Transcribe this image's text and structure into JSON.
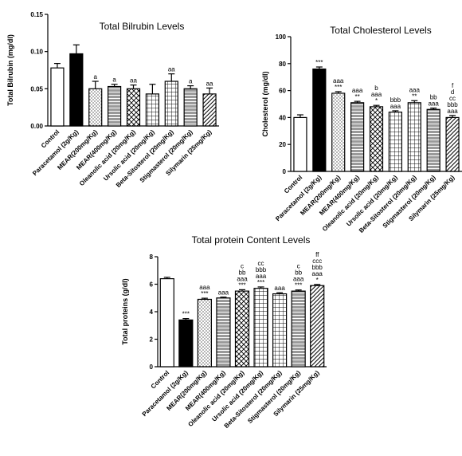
{
  "categories": [
    "Control",
    "Paracetamol (2g/Kg)",
    "MEAR(200mg/Kg)",
    "MEAR(400mg/Kg)",
    "Oleanolic acid (20mg/Kg)",
    "Ursolic acid (20mg/Kg)",
    "Beta-Sitosterol (20mg/Kg)",
    "Stigmasterol (20mg/Kg)",
    "Silymarin (25mg/Kg)"
  ],
  "chart_data": [
    {
      "type": "bar",
      "title": "Total Bilrubin Levels",
      "ylabel": "Total Bilrubin (mg/dl)",
      "xlabel": "",
      "ylim": [
        0,
        0.15
      ],
      "yticks": [
        "0.00",
        "0.05",
        "0.10",
        "0.15"
      ],
      "categories": [
        "Control",
        "Paracetamol (2g/Kg)",
        "MEAR(200mg/Kg)",
        "MEAR(400mg/Kg)",
        "Oleanolic acid (20mg/Kg)",
        "Ursolic acid (20mg/Kg)",
        "Beta-Sitosterol (20mg/Kg)",
        "Stigmasterol (20mg/Kg)",
        "Silymarin (25mg/Kg)"
      ],
      "values": [
        0.078,
        0.097,
        0.05,
        0.053,
        0.05,
        0.043,
        0.06,
        0.05,
        0.043
      ],
      "errors": [
        0.006,
        0.012,
        0.01,
        0.003,
        0.005,
        0.013,
        0.01,
        0.004,
        0.008
      ],
      "annotations": [
        [],
        [],
        [
          "a"
        ],
        [
          "a"
        ],
        [
          "aa"
        ],
        [],
        [
          "aa"
        ],
        [
          "a"
        ],
        [
          "aa"
        ]
      ],
      "patterns": [
        "white",
        "black",
        "dots",
        "hatch",
        "cross",
        "grid",
        "grid",
        "hatch",
        "diag"
      ],
      "grid": false
    },
    {
      "type": "bar",
      "title": "Total Cholesterol Levels",
      "ylabel": "Cholesterol (mg/dl)",
      "xlabel": "",
      "ylim": [
        0,
        100
      ],
      "yticks": [
        "0",
        "20",
        "40",
        "60",
        "80",
        "100"
      ],
      "categories": [
        "Control",
        "Paracetamol (2g/Kg)",
        "MEAR(200mg/Kg)",
        "MEAR(400mg/Kg)",
        "Oleanolic acid (20mg/Kg)",
        "Ursolic acid (20mg/Kg)",
        "Beta-Sitosterol (20mg/Kg)",
        "Stigmasterol (20mg/Kg)",
        "Silymarin (25mg/Kg)"
      ],
      "values": [
        40,
        76,
        58,
        51,
        48,
        44,
        51,
        46,
        40
      ],
      "errors": [
        2,
        1.5,
        1.2,
        1.0,
        1.0,
        1.0,
        1.5,
        1.0,
        1.5
      ],
      "annotations": [
        [],
        [
          "***"
        ],
        [
          "aaa",
          "***"
        ],
        [
          "aaa",
          "**"
        ],
        [
          "b",
          "aaa",
          "*"
        ],
        [
          "bbb",
          "aaa"
        ],
        [
          "aaa",
          "**"
        ],
        [
          "bb",
          "aaa"
        ],
        [
          "f",
          "d",
          "cc",
          "bbb",
          "aaa"
        ]
      ],
      "patterns": [
        "white",
        "black",
        "dots",
        "hatch",
        "cross",
        "grid",
        "grid",
        "hatch",
        "diag"
      ],
      "grid": false
    },
    {
      "type": "bar",
      "title": "Total protein Content Levels",
      "ylabel": "Total proteins (g/dl)",
      "xlabel": "",
      "ylim": [
        0,
        8
      ],
      "yticks": [
        "0",
        "2",
        "4",
        "6",
        "8"
      ],
      "categories": [
        "Control",
        "Paracetamol (2g/Kg)",
        "MEAR(200mg/Kg)",
        "MEAR(400mg/Kg)",
        "Oleanolic acid (20mg/Kg)",
        "Ursolic acid (20mg/Kg)",
        "Beta-Sitosterol (20mg/Kg)",
        "Stigmasterol (20mg/Kg)",
        "Silymarin (25mg/Kg)"
      ],
      "values": [
        6.4,
        3.4,
        4.9,
        5.0,
        5.5,
        5.7,
        5.3,
        5.5,
        5.9
      ],
      "errors": [
        0.1,
        0.1,
        0.08,
        0.06,
        0.1,
        0.1,
        0.08,
        0.08,
        0.08
      ],
      "annotations": [
        [],
        [
          "***"
        ],
        [
          "aaa",
          "***"
        ],
        [
          "aaa"
        ],
        [
          "c",
          "bb",
          "aaa",
          "***"
        ],
        [
          "cc",
          "bbb",
          "aaa",
          "***"
        ],
        [
          "aaa"
        ],
        [
          "c",
          "bb",
          "aaa",
          "***"
        ],
        [
          "ff",
          "ccc",
          "bbb",
          "aaa",
          "*"
        ]
      ],
      "patterns": [
        "white",
        "black",
        "dots",
        "hatch",
        "cross",
        "grid",
        "grid",
        "hatch",
        "diag"
      ],
      "grid": false
    }
  ]
}
